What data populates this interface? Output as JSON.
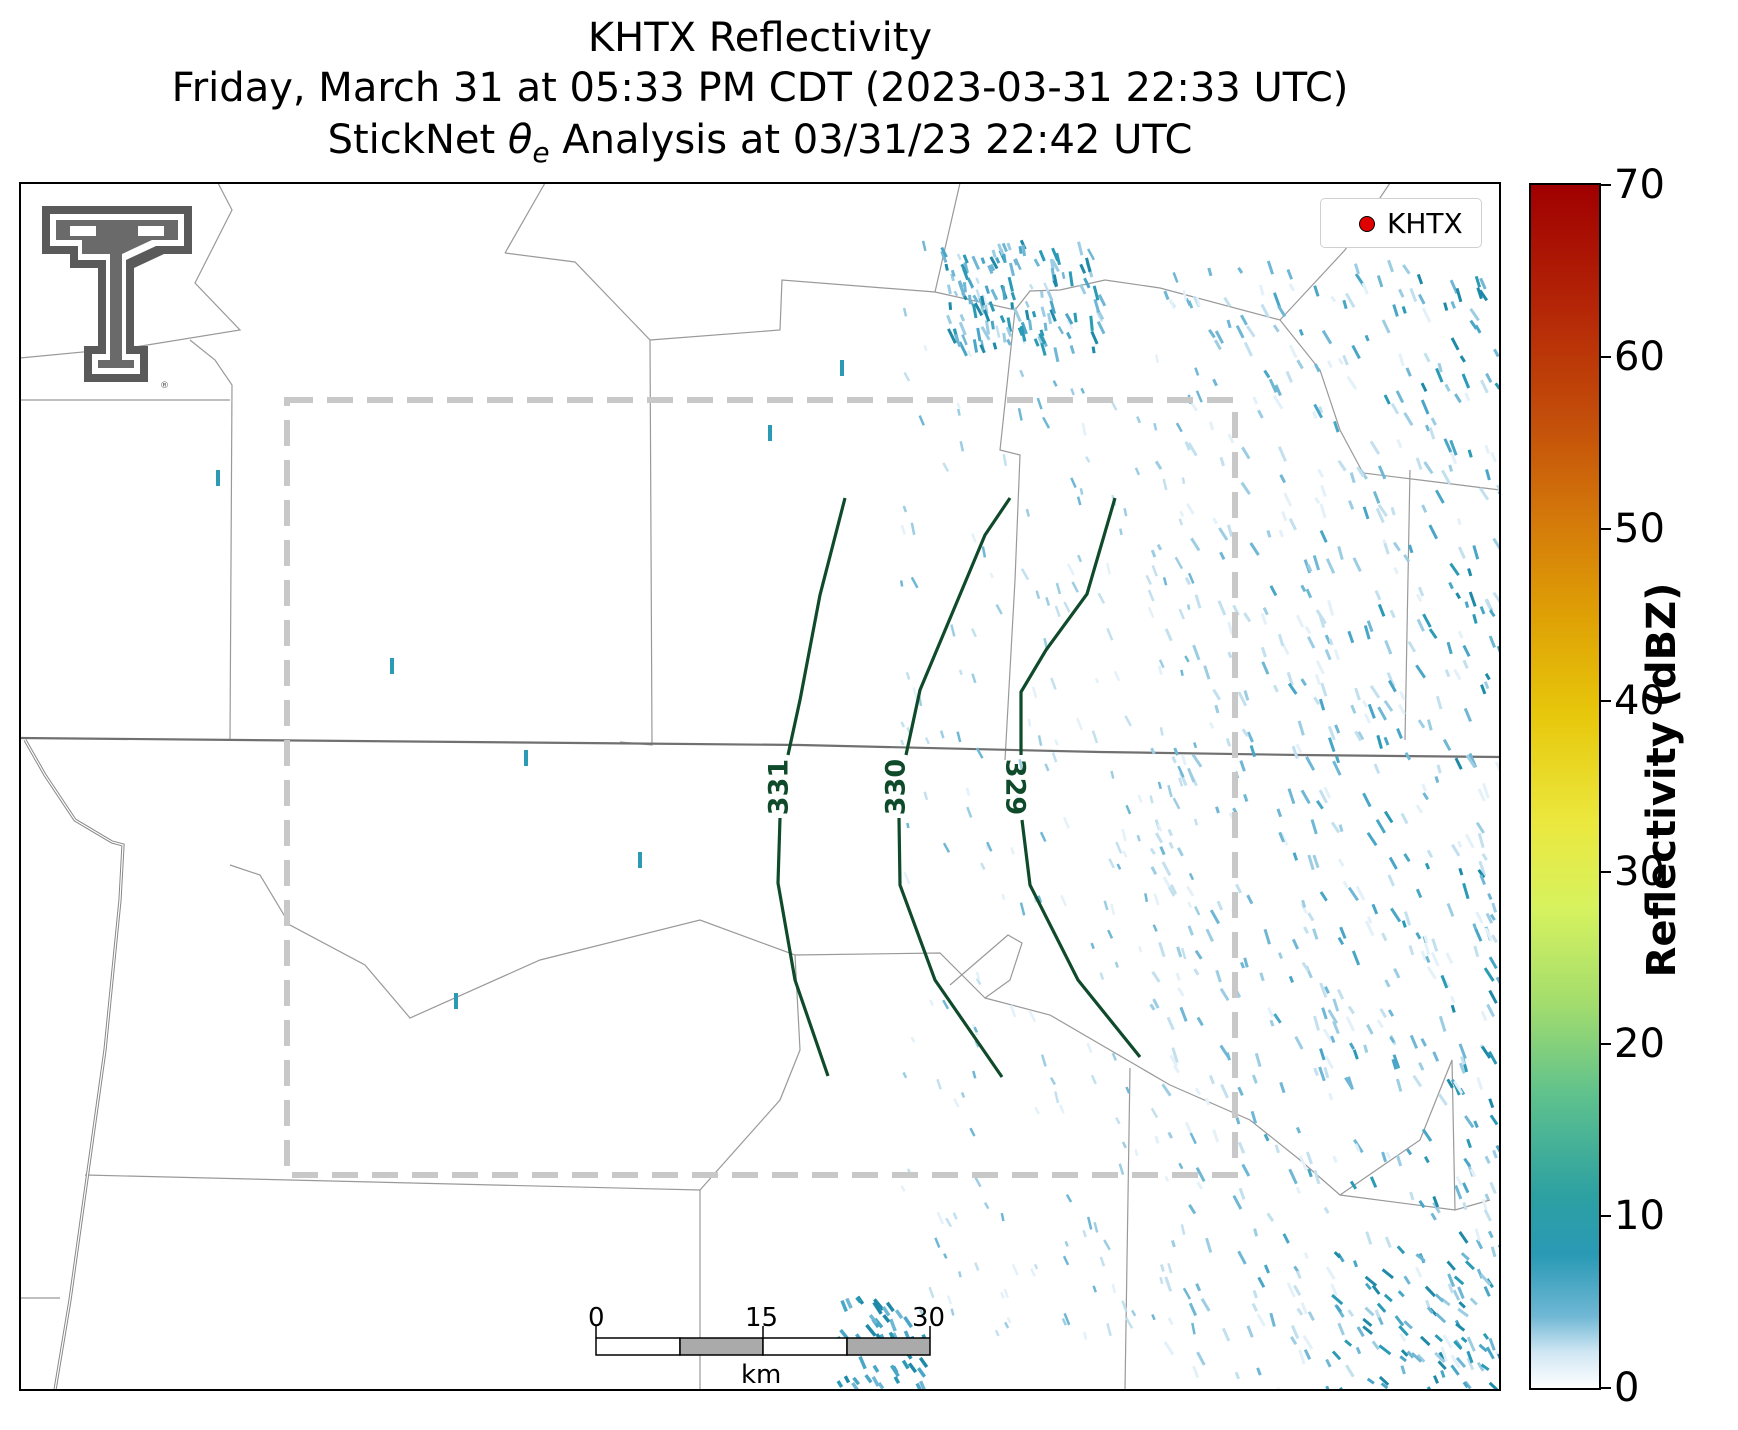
{
  "title": {
    "line1": "KHTX Reflectivity",
    "line2": "Friday, March 31 at 05:33 PM CDT (2023-03-31 22:33 UTC)",
    "line3_prefix": "StickNet ",
    "line3_symbol": "θ",
    "line3_subscript": "e",
    "line3_suffix": " Analysis at 03/31/23 22:42 UTC"
  },
  "legend": {
    "label": "KHTX",
    "marker_color": "#e00000"
  },
  "colorbar": {
    "title": "Reflectivity (dBZ)",
    "ticks": [
      "0",
      "10",
      "20",
      "30",
      "40",
      "50",
      "60",
      "70"
    ]
  },
  "scale_bar": {
    "ticks": [
      "0",
      "15",
      "30"
    ],
    "unit": "km"
  },
  "contours": {
    "color": "#0f4a2b",
    "labels": [
      "331",
      "330",
      "329"
    ]
  },
  "analysis_box_color": "#c8c8c8",
  "icons": [
    "texas-tech-logo-icon"
  ]
}
